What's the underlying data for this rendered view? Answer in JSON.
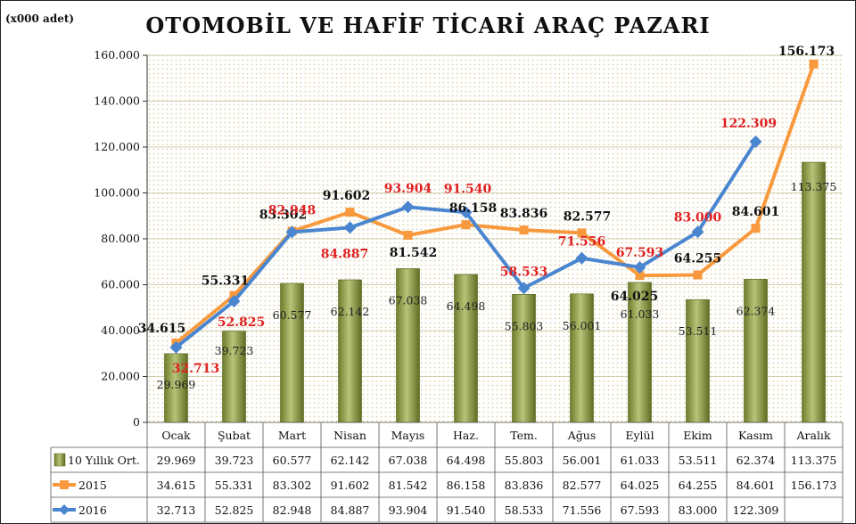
{
  "page": {
    "unit_label": "(x000 adet)",
    "title": "OTOMOBİL VE HAFİF TİCARİ ARAÇ PAZARI"
  },
  "colors": {
    "bar": "#8a9a3e",
    "series_2015": "#f7993c",
    "series_2016": "#4a86d0",
    "label_2016": "#e02020",
    "plot_dots": "#d9cfa0"
  },
  "chart_data": {
    "type": "bar",
    "categories": [
      "Ocak",
      "Şubat",
      "Mart",
      "Nisan",
      "Mayıs",
      "Haz.",
      "Tem.",
      "Ağus",
      "Eylül",
      "Ekim",
      "Kasım",
      "Aralık"
    ],
    "y_ticks": [
      "0",
      "20.000",
      "40.000",
      "60.000",
      "80.000",
      "100.000",
      "120.000",
      "140.000",
      "160.000"
    ],
    "ylim": [
      0,
      160
    ],
    "series": [
      {
        "name": "10 Yıllık Ort.",
        "render": "bar",
        "values": [
          29.969,
          39.723,
          60.577,
          62.142,
          67.038,
          64.498,
          55.803,
          56.001,
          61.033,
          53.511,
          62.374,
          113.375
        ],
        "labels": [
          "29.969",
          "39.723",
          "60.577",
          "62.142",
          "67.038",
          "64.498",
          "55.803",
          "56.001",
          "61.033",
          "53.511",
          "62.374",
          "113.375"
        ]
      },
      {
        "name": "2015",
        "render": "line",
        "values": [
          34.615,
          55.331,
          83.302,
          91.602,
          81.542,
          86.158,
          83.836,
          82.577,
          64.025,
          64.255,
          84.601,
          156.173
        ],
        "labels": [
          "34.615",
          "55.331",
          "83.302",
          "91.602",
          "81.542",
          "86.158",
          "83.836",
          "82.577",
          "64.025",
          "64.255",
          "84.601",
          "156.173"
        ]
      },
      {
        "name": "2016",
        "render": "line",
        "values": [
          32.713,
          52.825,
          82.948,
          84.887,
          93.904,
          91.54,
          58.533,
          71.556,
          67.593,
          83.0,
          122.309,
          null
        ],
        "labels": [
          "32.713",
          "52.825",
          "82.948",
          "84.887",
          "93.904",
          "91.540",
          "58.533",
          "71.556",
          "67.593",
          "83.000",
          "122.309",
          ""
        ]
      }
    ]
  }
}
